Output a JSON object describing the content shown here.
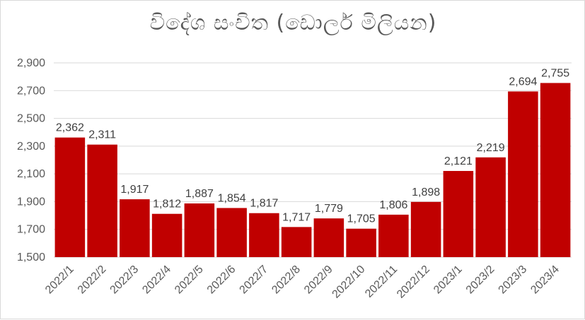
{
  "chart_data": {
    "type": "bar",
    "title": "විදේශ සංචිත (ඩොලර් මිලියන)",
    "xlabel": "",
    "ylabel": "",
    "ylim": [
      1500,
      2900
    ],
    "y_ticks": [
      "1,500",
      "1,700",
      "1,900",
      "2,100",
      "2,300",
      "2,500",
      "2,700",
      "2,900"
    ],
    "y_tick_values": [
      1500,
      1700,
      1900,
      2100,
      2300,
      2500,
      2700,
      2900
    ],
    "grid": true,
    "legend": "none",
    "bar_color": "#c00000",
    "categories": [
      "2022/1",
      "2022/2",
      "2022/3",
      "2022/4",
      "2022/5",
      "2022/6",
      "2022/7",
      "2022/8",
      "2022/9",
      "2022/10",
      "2022/11",
      "2022/12",
      "2023/1",
      "2023/2",
      "2023/3",
      "2023/4"
    ],
    "values": [
      2362,
      2311,
      1917,
      1812,
      1887,
      1854,
      1817,
      1717,
      1779,
      1705,
      1806,
      1898,
      2121,
      2219,
      2694,
      2755
    ],
    "value_labels": [
      "2,362",
      "2,311",
      "1,917",
      "1,812",
      "1,887",
      "1,854",
      "1,817",
      "1,717",
      "1,779",
      "1,705",
      "1,806",
      "1,898",
      "2,121",
      "2,219",
      "2,694",
      "2,755"
    ]
  }
}
